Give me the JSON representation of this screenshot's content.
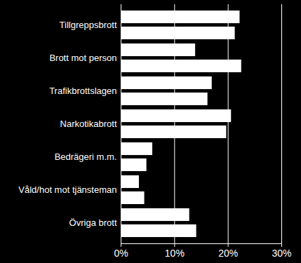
{
  "chart_data": {
    "type": "bar",
    "orientation": "horizontal",
    "categories": [
      "Tillgreppsbrott",
      "Brott mot person",
      "Trafikbrottslagen",
      "Narkotikabrott",
      "Bedrägeri m.m.",
      "Våld/hot mot tjänsteman",
      "Övriga brott"
    ],
    "series": [
      {
        "color": "#ffffff",
        "values": [
          22.2,
          13.9,
          17.0,
          20.6,
          5.9,
          3.4,
          12.8
        ]
      },
      {
        "color": "#ffffff",
        "values": [
          21.3,
          22.5,
          16.2,
          19.7,
          4.8,
          4.4,
          14.1
        ]
      }
    ],
    "xlim": [
      0,
      30
    ],
    "xticks": [
      {
        "value": 0,
        "label": "0%"
      },
      {
        "value": 10,
        "label": "10%"
      },
      {
        "value": 20,
        "label": "20%"
      },
      {
        "value": 30,
        "label": "30%"
      }
    ],
    "grid": true
  }
}
